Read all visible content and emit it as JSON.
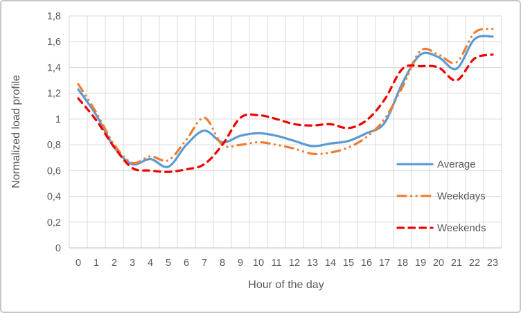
{
  "frame": {
    "background": "#ffffff",
    "border_color": "#c6c6c6"
  },
  "chart_data": {
    "type": "line",
    "title": "",
    "xlabel": "Hour of the day",
    "ylabel": "Normalized load profile",
    "x": [
      0,
      1,
      2,
      3,
      4,
      5,
      6,
      7,
      8,
      9,
      10,
      11,
      12,
      13,
      14,
      15,
      16,
      17,
      18,
      19,
      20,
      21,
      22,
      23
    ],
    "xtick_labels": [
      "0",
      "1",
      "2",
      "3",
      "4",
      "5",
      "6",
      "7",
      "8",
      "9",
      "10",
      "11",
      "12",
      "13",
      "14",
      "15",
      "16",
      "17",
      "18",
      "19",
      "20",
      "21",
      "22",
      "23"
    ],
    "ylim": [
      0,
      1.8
    ],
    "ytick_step": 0.2,
    "ytick_labels": [
      "0",
      "0,2",
      "0,4",
      "0,6",
      "0,8",
      "1",
      "1,2",
      "1,4",
      "1,6",
      "1,8"
    ],
    "decimal_separator": ",",
    "grid": true,
    "gridline_color": "#d9d9d9",
    "axis_line_color": "#bfbfbf",
    "text_color": "#595959",
    "legend_position": "inside-right",
    "series": [
      {
        "name": "Average",
        "color": "#5B9BD5",
        "line_style": "solid",
        "values": [
          1.23,
          1.03,
          0.78,
          0.65,
          0.69,
          0.63,
          0.8,
          0.91,
          0.82,
          0.87,
          0.89,
          0.87,
          0.83,
          0.79,
          0.81,
          0.83,
          0.89,
          0.97,
          1.28,
          1.5,
          1.48,
          1.39,
          1.62,
          1.64
        ]
      },
      {
        "name": "Weekdays",
        "color": "#ED7D31",
        "line_style": "dash-dot-dot",
        "values": [
          1.27,
          1.05,
          0.8,
          0.66,
          0.71,
          0.68,
          0.84,
          1.01,
          0.8,
          0.8,
          0.82,
          0.8,
          0.77,
          0.73,
          0.74,
          0.78,
          0.86,
          1.0,
          1.25,
          1.53,
          1.5,
          1.44,
          1.67,
          1.7
        ]
      },
      {
        "name": "Weekends",
        "color": "#EE0000",
        "line_style": "dash",
        "values": [
          1.16,
          0.99,
          0.78,
          0.62,
          0.6,
          0.59,
          0.61,
          0.65,
          0.8,
          1.01,
          1.03,
          1.0,
          0.96,
          0.95,
          0.96,
          0.93,
          0.99,
          1.15,
          1.39,
          1.41,
          1.4,
          1.3,
          1.47,
          1.5
        ]
      }
    ]
  }
}
